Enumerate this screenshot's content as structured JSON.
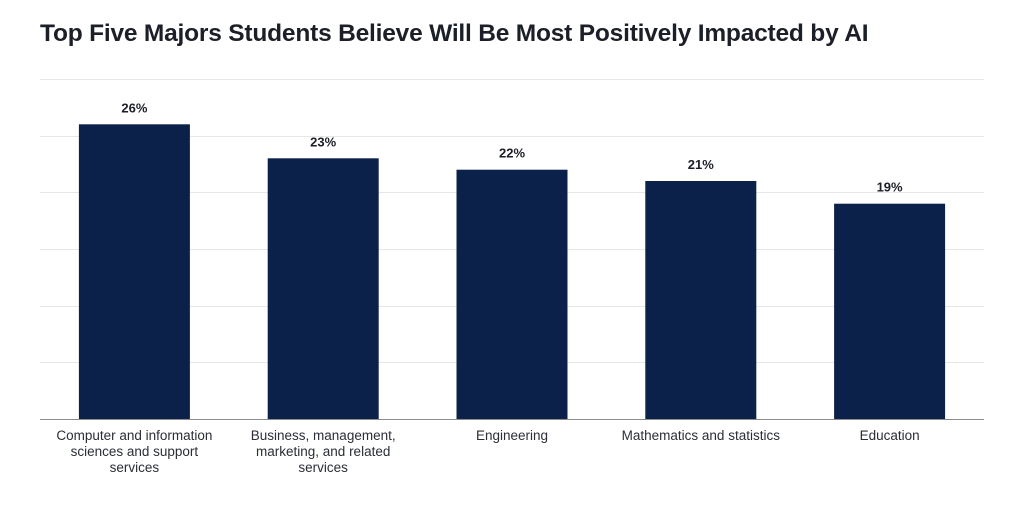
{
  "chart_data": {
    "type": "bar",
    "title": "Top Five Majors Students Believe Will Be Most Positively Impacted by AI",
    "xlabel": "",
    "ylabel": "",
    "categories": [
      "Computer and information sciences and support services",
      "Business, management, marketing, and related services",
      "Engineering",
      "Mathematics and statistics",
      "Education"
    ],
    "values": [
      26,
      23,
      22,
      21,
      19
    ],
    "value_labels": [
      "26%",
      "23%",
      "22%",
      "21%",
      "19%"
    ],
    "unit": "%",
    "ylim": [
      0,
      30
    ],
    "grid": true,
    "legend": "none",
    "colors": {
      "bar": "#0c2149",
      "grid": "#e6e6e6",
      "axis": "#8c8c8c",
      "text": "#1c1f28"
    }
  }
}
